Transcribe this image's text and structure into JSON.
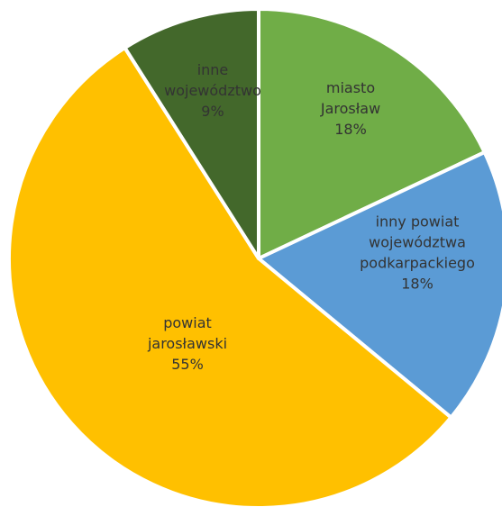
{
  "chart_data": {
    "type": "pie",
    "title": "",
    "slices": [
      {
        "label_lines": [
          "miasto",
          "Jarosław"
        ],
        "value": 18,
        "value_label": "18%",
        "color": "#70AD47"
      },
      {
        "label_lines": [
          "inny powiat",
          "województwa",
          "podkarpackiego"
        ],
        "value": 18,
        "value_label": "18%",
        "color": "#5B9BD5"
      },
      {
        "label_lines": [
          "powiat",
          "jarosławski"
        ],
        "value": 55,
        "value_label": "55%",
        "color": "#FFC000"
      },
      {
        "label_lines": [
          "inne",
          "województwo"
        ],
        "value": 9,
        "value_label": "9%",
        "color": "#43682B"
      }
    ],
    "start_angle_deg": 0,
    "direction": "clockwise",
    "separator_color": "#FFFFFF"
  }
}
